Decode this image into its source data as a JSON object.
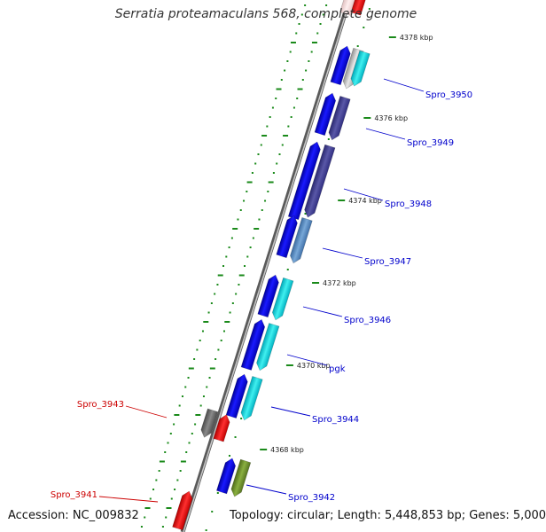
{
  "title": "Serratia proteamaculans 568, complete genome",
  "accession": "Accession: NC_009832",
  "summary": "Topology: circular; Length: 5,448,853 bp; Genes: 5,000",
  "colors": {
    "backbone": "#8a8a8a",
    "tick": "#1a8a1a",
    "forward_gene": "#0000ee",
    "reverse_gene": "#ee0000",
    "label_forward": "#0000cc",
    "label_reverse": "#cc0000"
  },
  "kbp_ticks": [
    "4368 kbp",
    "4370 kbp",
    "4372 kbp",
    "4374 kbp",
    "4376 kbp",
    "4378 kbp"
  ],
  "gene_labels": {
    "right": [
      "Spro_3950",
      "Spro_3949",
      "Spro_3948",
      "Spro_3947",
      "Spro_3946",
      "pgk",
      "Spro_3944",
      "Spro_3942"
    ],
    "left": [
      "Spro_3943",
      "Spro_3941"
    ]
  }
}
